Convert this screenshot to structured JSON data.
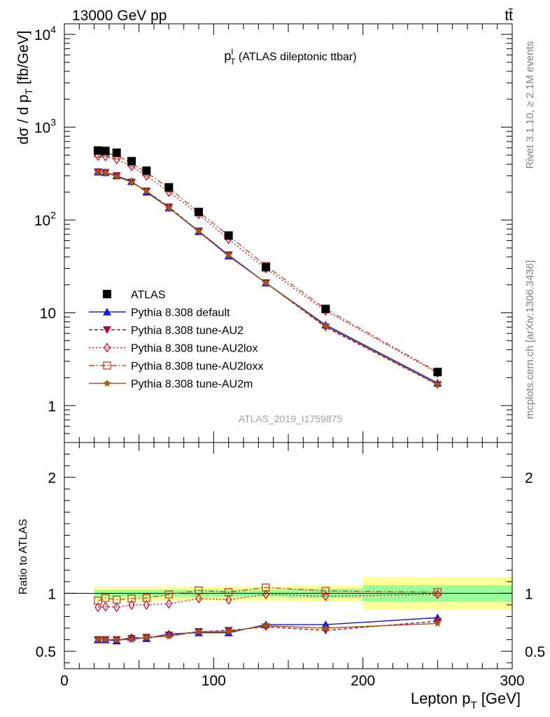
{
  "header": {
    "energy_label": "13000 GeV pp",
    "process_label": "tt̄"
  },
  "side_labels": {
    "rivet": "Rivet 3.1.10, ≥ 2.1M events",
    "mcplots": "mcplots.cern.ch [arXiv:1306.3436]"
  },
  "chart_data": [
    {
      "type": "line",
      "panel": "main",
      "title_main": "p",
      "title_sup": "l",
      "title_sub": "T",
      "title_rest": " (ATLAS dileptonic ttbar)",
      "ylabel_main": "dσ / d p",
      "ylabel_sub": "T",
      "ylabel_rest": " [fb/GeV]",
      "watermark": "ATLAS_2019_I1759875",
      "yscale": "log",
      "xlim": [
        0,
        300
      ],
      "ylim": [
        0.4,
        13000
      ],
      "yticks": [
        {
          "value": 10000,
          "base": "10",
          "exp": "4"
        },
        {
          "value": 1000,
          "base": "10",
          "exp": "3"
        },
        {
          "value": 100,
          "base": "10",
          "exp": "2"
        },
        {
          "value": 10,
          "base": "10",
          "exp": ""
        },
        {
          "value": 1,
          "base": "1",
          "exp": ""
        }
      ],
      "legend_position": "bottom-left",
      "x": [
        22.5,
        27.5,
        35,
        45,
        55,
        70,
        90,
        110,
        135,
        175,
        250
      ],
      "series": [
        {
          "name": "ATLAS",
          "color": "#000000",
          "marker": "square-filled",
          "dash": "",
          "values": [
            560,
            555,
            530,
            430,
            340,
            225,
            122,
            68,
            31,
            11,
            2.3
          ]
        },
        {
          "name": "Pythia 8.308 default",
          "color": "#1414e6",
          "marker": "triangle-up-filled",
          "dash": "",
          "values": [
            330,
            325,
            300,
            260,
            200,
            135,
            75,
            41,
            21,
            7.4,
            1.75
          ]
        },
        {
          "name": "Pythia 8.308 tune-AU2",
          "color": "#a01040",
          "marker": "triangle-down-filled",
          "dash": "5,3",
          "values": [
            330,
            325,
            300,
            255,
            205,
            138,
            76,
            42,
            21,
            7,
            1.68
          ]
        },
        {
          "name": "Pythia 8.308 tune-AU2lox",
          "color": "#c8102e",
          "marker": "diamond-open",
          "dash": "2,3",
          "values": [
            490,
            485,
            450,
            380,
            300,
            200,
            115,
            62,
            30,
            10.5,
            2.25
          ]
        },
        {
          "name": "Pythia 8.308 tune-AU2loxx",
          "color": "#c0502a",
          "marker": "square-open",
          "dash": "8,3,2,3",
          "values": [
            520,
            530,
            495,
            410,
            325,
            220,
            122,
            68,
            32,
            11,
            2.3
          ]
        },
        {
          "name": "Pythia 8.308 tune-AU2m",
          "color": "#9a5a10",
          "marker": "star",
          "dash": "",
          "values": [
            330,
            325,
            295,
            255,
            205,
            135,
            76,
            42,
            21,
            7.2,
            1.7
          ]
        }
      ]
    },
    {
      "type": "line",
      "panel": "ratio",
      "ylabel": "Ratio to ATLAS",
      "xlabel_main": "Lepton p",
      "xlabel_sub": "T",
      "xlabel_rest": " [GeV]",
      "xlim": [
        0,
        300
      ],
      "ylim": [
        0.35,
        2.3
      ],
      "xticks": [
        0,
        100,
        200,
        300
      ],
      "yticks": [
        0.5,
        1,
        2
      ],
      "bands": [
        {
          "x0": 20,
          "x1": 150,
          "inner": 0.03,
          "outer": 0.06
        },
        {
          "x0": 150,
          "x1": 200,
          "inner": 0.04,
          "outer": 0.07
        },
        {
          "x0": 200,
          "x1": 300,
          "inner": 0.07,
          "outer": 0.14
        }
      ],
      "x": [
        22.5,
        27.5,
        35,
        45,
        55,
        70,
        90,
        110,
        135,
        175,
        250
      ],
      "series": [
        {
          "name": "Pythia 8.308 default",
          "values": [
            0.6,
            0.6,
            0.59,
            0.62,
            0.61,
            0.65,
            0.66,
            0.66,
            0.73,
            0.73,
            0.79
          ]
        },
        {
          "name": "Pythia 8.308 tune-AU2",
          "values": [
            0.6,
            0.6,
            0.6,
            0.61,
            0.62,
            0.64,
            0.67,
            0.68,
            0.71,
            0.68,
            0.76
          ]
        },
        {
          "name": "Pythia 8.308 tune-AU2lox",
          "values": [
            0.88,
            0.885,
            0.88,
            0.9,
            0.9,
            0.91,
            0.955,
            0.945,
            0.99,
            0.975,
            0.99
          ]
        },
        {
          "name": "Pythia 8.308 tune-AU2loxx",
          "values": [
            0.935,
            0.96,
            0.945,
            0.955,
            0.96,
            0.99,
            1.025,
            1.01,
            1.05,
            1.02,
            1.01
          ]
        },
        {
          "name": "Pythia 8.308 tune-AU2m",
          "values": [
            0.6,
            0.6,
            0.6,
            0.6,
            0.62,
            0.63,
            0.67,
            0.67,
            0.72,
            0.7,
            0.74
          ]
        }
      ]
    }
  ]
}
